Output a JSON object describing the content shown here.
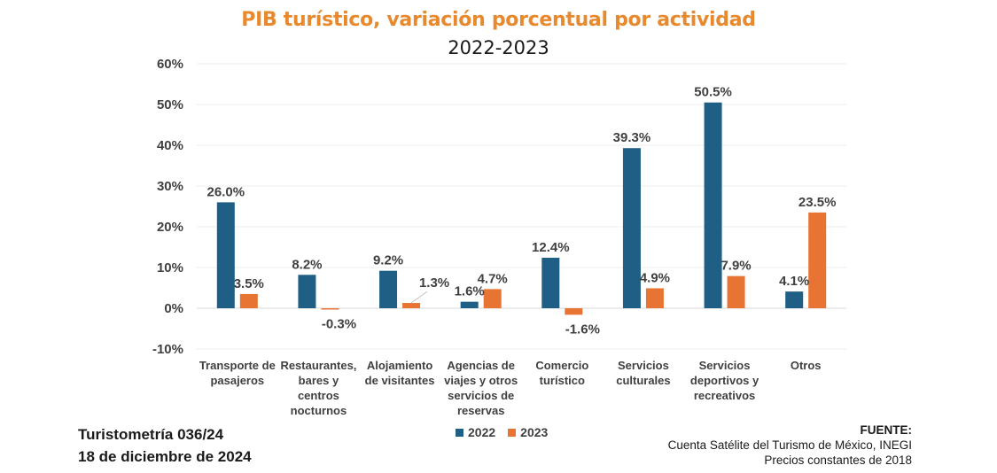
{
  "chart_data": {
    "type": "bar",
    "title": "PIB turístico, variación porcentual por actividad",
    "subtitle": "2022-2023",
    "xlabel": "",
    "ylabel": "",
    "ylim": [
      -10,
      60
    ],
    "yticks": [
      -10,
      0,
      10,
      20,
      30,
      40,
      50,
      60
    ],
    "ytick_labels": [
      "-10%",
      "0%",
      "10%",
      "20%",
      "30%",
      "40%",
      "50%",
      "60%"
    ],
    "grid": true,
    "legend_position": "bottom",
    "categories": [
      [
        "Transporte de",
        "pasajeros"
      ],
      [
        "Restaurantes,",
        "bares y",
        "centros",
        "nocturnos"
      ],
      [
        "Alojamiento",
        "de visitantes"
      ],
      [
        "Agencias de",
        "viajes y otros",
        "servicios de",
        "reservas"
      ],
      [
        "Comercio",
        "turístico"
      ],
      [
        "Servicios",
        "culturales"
      ],
      [
        "Servicios",
        "deportivos y",
        "recreativos"
      ],
      [
        "Otros"
      ]
    ],
    "series": [
      {
        "name": "2022",
        "color": "#1F5F85",
        "values": [
          26.0,
          8.2,
          9.2,
          1.6,
          12.4,
          39.3,
          50.5,
          4.1
        ],
        "labels": [
          "26.0%",
          "8.2%",
          "9.2%",
          "1.6%",
          "12.4%",
          "39.3%",
          "50.5%",
          "4.1%"
        ]
      },
      {
        "name": "2023",
        "color": "#E87433",
        "values": [
          3.5,
          -0.3,
          1.3,
          4.7,
          -1.6,
          4.9,
          7.9,
          23.5
        ],
        "labels": [
          "3.5%",
          "-0.3%",
          "1.3%",
          "4.7%",
          "-1.6%",
          "4.9%",
          "7.9%",
          "23.5%"
        ]
      }
    ]
  },
  "footer": {
    "bulletin": "Turistometría 036/24",
    "date": "18 de diciembre de 2024",
    "source_label": "FUENTE:",
    "source_line1": "Cuenta Satélite del Turismo de México, INEGI",
    "source_line2": "Precios constantes de 2018"
  },
  "legend": {
    "items": [
      {
        "label": "2022",
        "color": "#1F5F85"
      },
      {
        "label": "2023",
        "color": "#E87433"
      }
    ]
  }
}
